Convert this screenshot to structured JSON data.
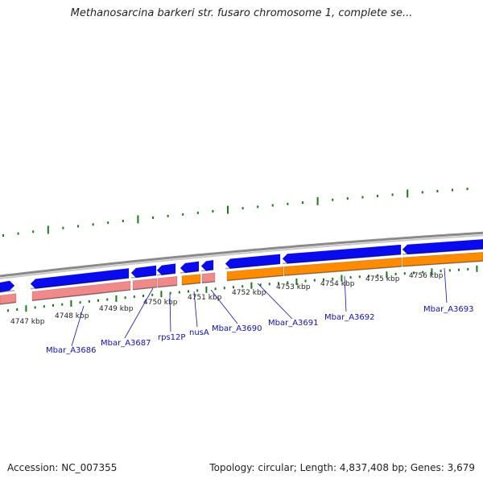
{
  "title": "Methanosarcina barkeri str. fusaro chromosome 1, complete se...",
  "footer": {
    "accession": "Accession: NC_007355",
    "summary": "Topology: circular; Length: 4,837,408 bp; Genes: 3,679"
  },
  "colors": {
    "backbone": "#8a8a8a",
    "cds_forward": "#0a0aee",
    "cds_reverse": "#f08a8a",
    "gene_highlight": "#ff8c00",
    "tick": "#1a7a1a",
    "label": "#1010b0"
  },
  "scale_labels": [
    "4747 kbp",
    "4748 kbp",
    "4749 kbp",
    "4750 kbp",
    "4751 kbp",
    "4752 kbp",
    "4753 kbp",
    "4754 kbp",
    "4755 kbp",
    "4756 kbp"
  ],
  "gene_labels": [
    "Mbar_A3686",
    "Mbar_A3687",
    "rps12P",
    "nusA",
    "Mbar_A3690",
    "Mbar_A3691",
    "Mbar_A3692",
    "Mbar_A3693"
  ]
}
